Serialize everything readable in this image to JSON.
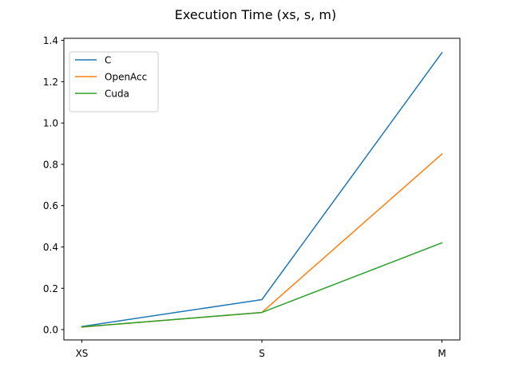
{
  "chart_data": {
    "type": "line",
    "title": "Execution Time (xs, s, m)",
    "xlabel": "",
    "ylabel": "",
    "categories": [
      "XS",
      "S",
      "M"
    ],
    "yticks": [
      "0.0",
      "0.2",
      "0.4",
      "0.6",
      "0.8",
      "1.0",
      "1.2",
      "1.4"
    ],
    "ylim": [
      -0.05,
      1.41
    ],
    "grid": false,
    "legend_position": "top-left",
    "series": [
      {
        "name": "C",
        "color": "#1f77b4",
        "values": [
          0.015,
          0.145,
          1.34
        ]
      },
      {
        "name": "OpenAcc",
        "color": "#ff7f0e",
        "values": [
          0.012,
          0.083,
          0.85
        ]
      },
      {
        "name": "Cuda",
        "color": "#2ca02c",
        "values": [
          0.013,
          0.083,
          0.42
        ]
      }
    ]
  }
}
